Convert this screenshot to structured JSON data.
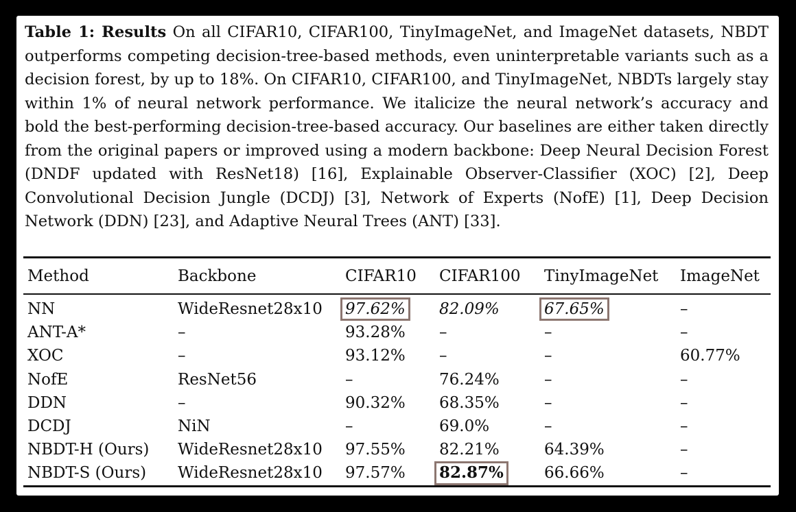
{
  "caption": {
    "label": "Table 1: Results",
    "text": "On all CIFAR10, CIFAR100, TinyImageNet, and ImageNet datasets, NBDT outperforms competing decision-tree-based methods, even uninter­pretable variants such as a decision forest, by up to 18%. On CIFAR10, CIFAR100, and TinyImageNet, NBDTs largely stay within 1% of neural network performance. We italicize the neural network’s accuracy and bold the best-performing decision-tree-based accuracy. Our baselines are either taken directly from the original papers or improved using a modern backbone: Deep Neural Decision Forest (DNDF updated with ResNet18) [16], Explainable Observer-Classifier (XOC) [2], Deep Convolutional Decision Jungle (DCDJ) [3], Network of Experts (NofE) [1], Deep Decision Network (DDN) [23], and Adaptive Neural Trees (ANT) [33]."
  },
  "table": {
    "headers": [
      "Method",
      "Backbone",
      "CIFAR10",
      "CIFAR100",
      "TinyImageNet",
      "ImageNet"
    ],
    "rows": [
      {
        "method": "NN",
        "backbone": "WideResnet28x10",
        "cifar10": "97.62%",
        "cifar100": "82.09%",
        "tiny": "67.65%",
        "imagenet": "–"
      },
      {
        "method": "ANT-A*",
        "backbone": "–",
        "cifar10": "93.28%",
        "cifar100": "–",
        "tiny": "–",
        "imagenet": "–"
      },
      {
        "method": "XOC",
        "backbone": "–",
        "cifar10": "93.12%",
        "cifar100": "–",
        "tiny": "–",
        "imagenet": "60.77%"
      },
      {
        "method": "NofE",
        "backbone": "ResNet56",
        "cifar10": "–",
        "cifar100": "76.24%",
        "tiny": "–",
        "imagenet": "–"
      },
      {
        "method": "DDN",
        "backbone": "–",
        "cifar10": "90.32%",
        "cifar100": "68.35%",
        "tiny": "–",
        "imagenet": "–"
      },
      {
        "method": "DCDJ",
        "backbone": "NiN",
        "cifar10": "–",
        "cifar100": "69.0%",
        "tiny": "–",
        "imagenet": "–"
      },
      {
        "method": "NBDT-H (Ours)",
        "backbone": "WideResnet28x10",
        "cifar10": "97.55%",
        "cifar100": "82.21%",
        "tiny": "64.39%",
        "imagenet": "–"
      },
      {
        "method": "NBDT-S (Ours)",
        "backbone": "WideResnet28x10",
        "cifar10": "97.57%",
        "cifar100": "82.87%",
        "tiny": "66.66%",
        "imagenet": "–"
      }
    ]
  },
  "highlight_color": "#8c7670"
}
